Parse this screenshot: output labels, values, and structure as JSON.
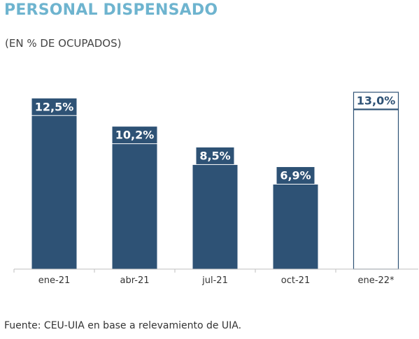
{
  "header": {
    "title": "PERSONAL DISPENSADO",
    "subtitle": "(EN % DE OCUPADOS)"
  },
  "footer": {
    "source": "Fuente: CEU-UIA en base a relevamiento de UIA."
  },
  "colors": {
    "title": "#6eb4cf",
    "bar": "#2e5275",
    "projection_outline": "#2e5275",
    "axis": "#bfbfbf"
  },
  "chart_data": {
    "type": "bar",
    "title": "PERSONAL DISPENSADO",
    "subtitle": "(EN % DE OCUPADOS)",
    "categories": [
      "ene-21",
      "abr-21",
      "jul-21",
      "oct-21",
      "ene-22*"
    ],
    "values": [
      12.5,
      10.2,
      8.5,
      6.9,
      13.0
    ],
    "labels": [
      "12,5%",
      "10,2%",
      "8,5%",
      "6,9%",
      "13,0%"
    ],
    "projected": [
      false,
      false,
      false,
      false,
      true
    ],
    "unit": "%",
    "xlabel": "",
    "ylabel": "",
    "ylim": [
      0,
      13
    ],
    "grid": false,
    "legend": "none"
  }
}
